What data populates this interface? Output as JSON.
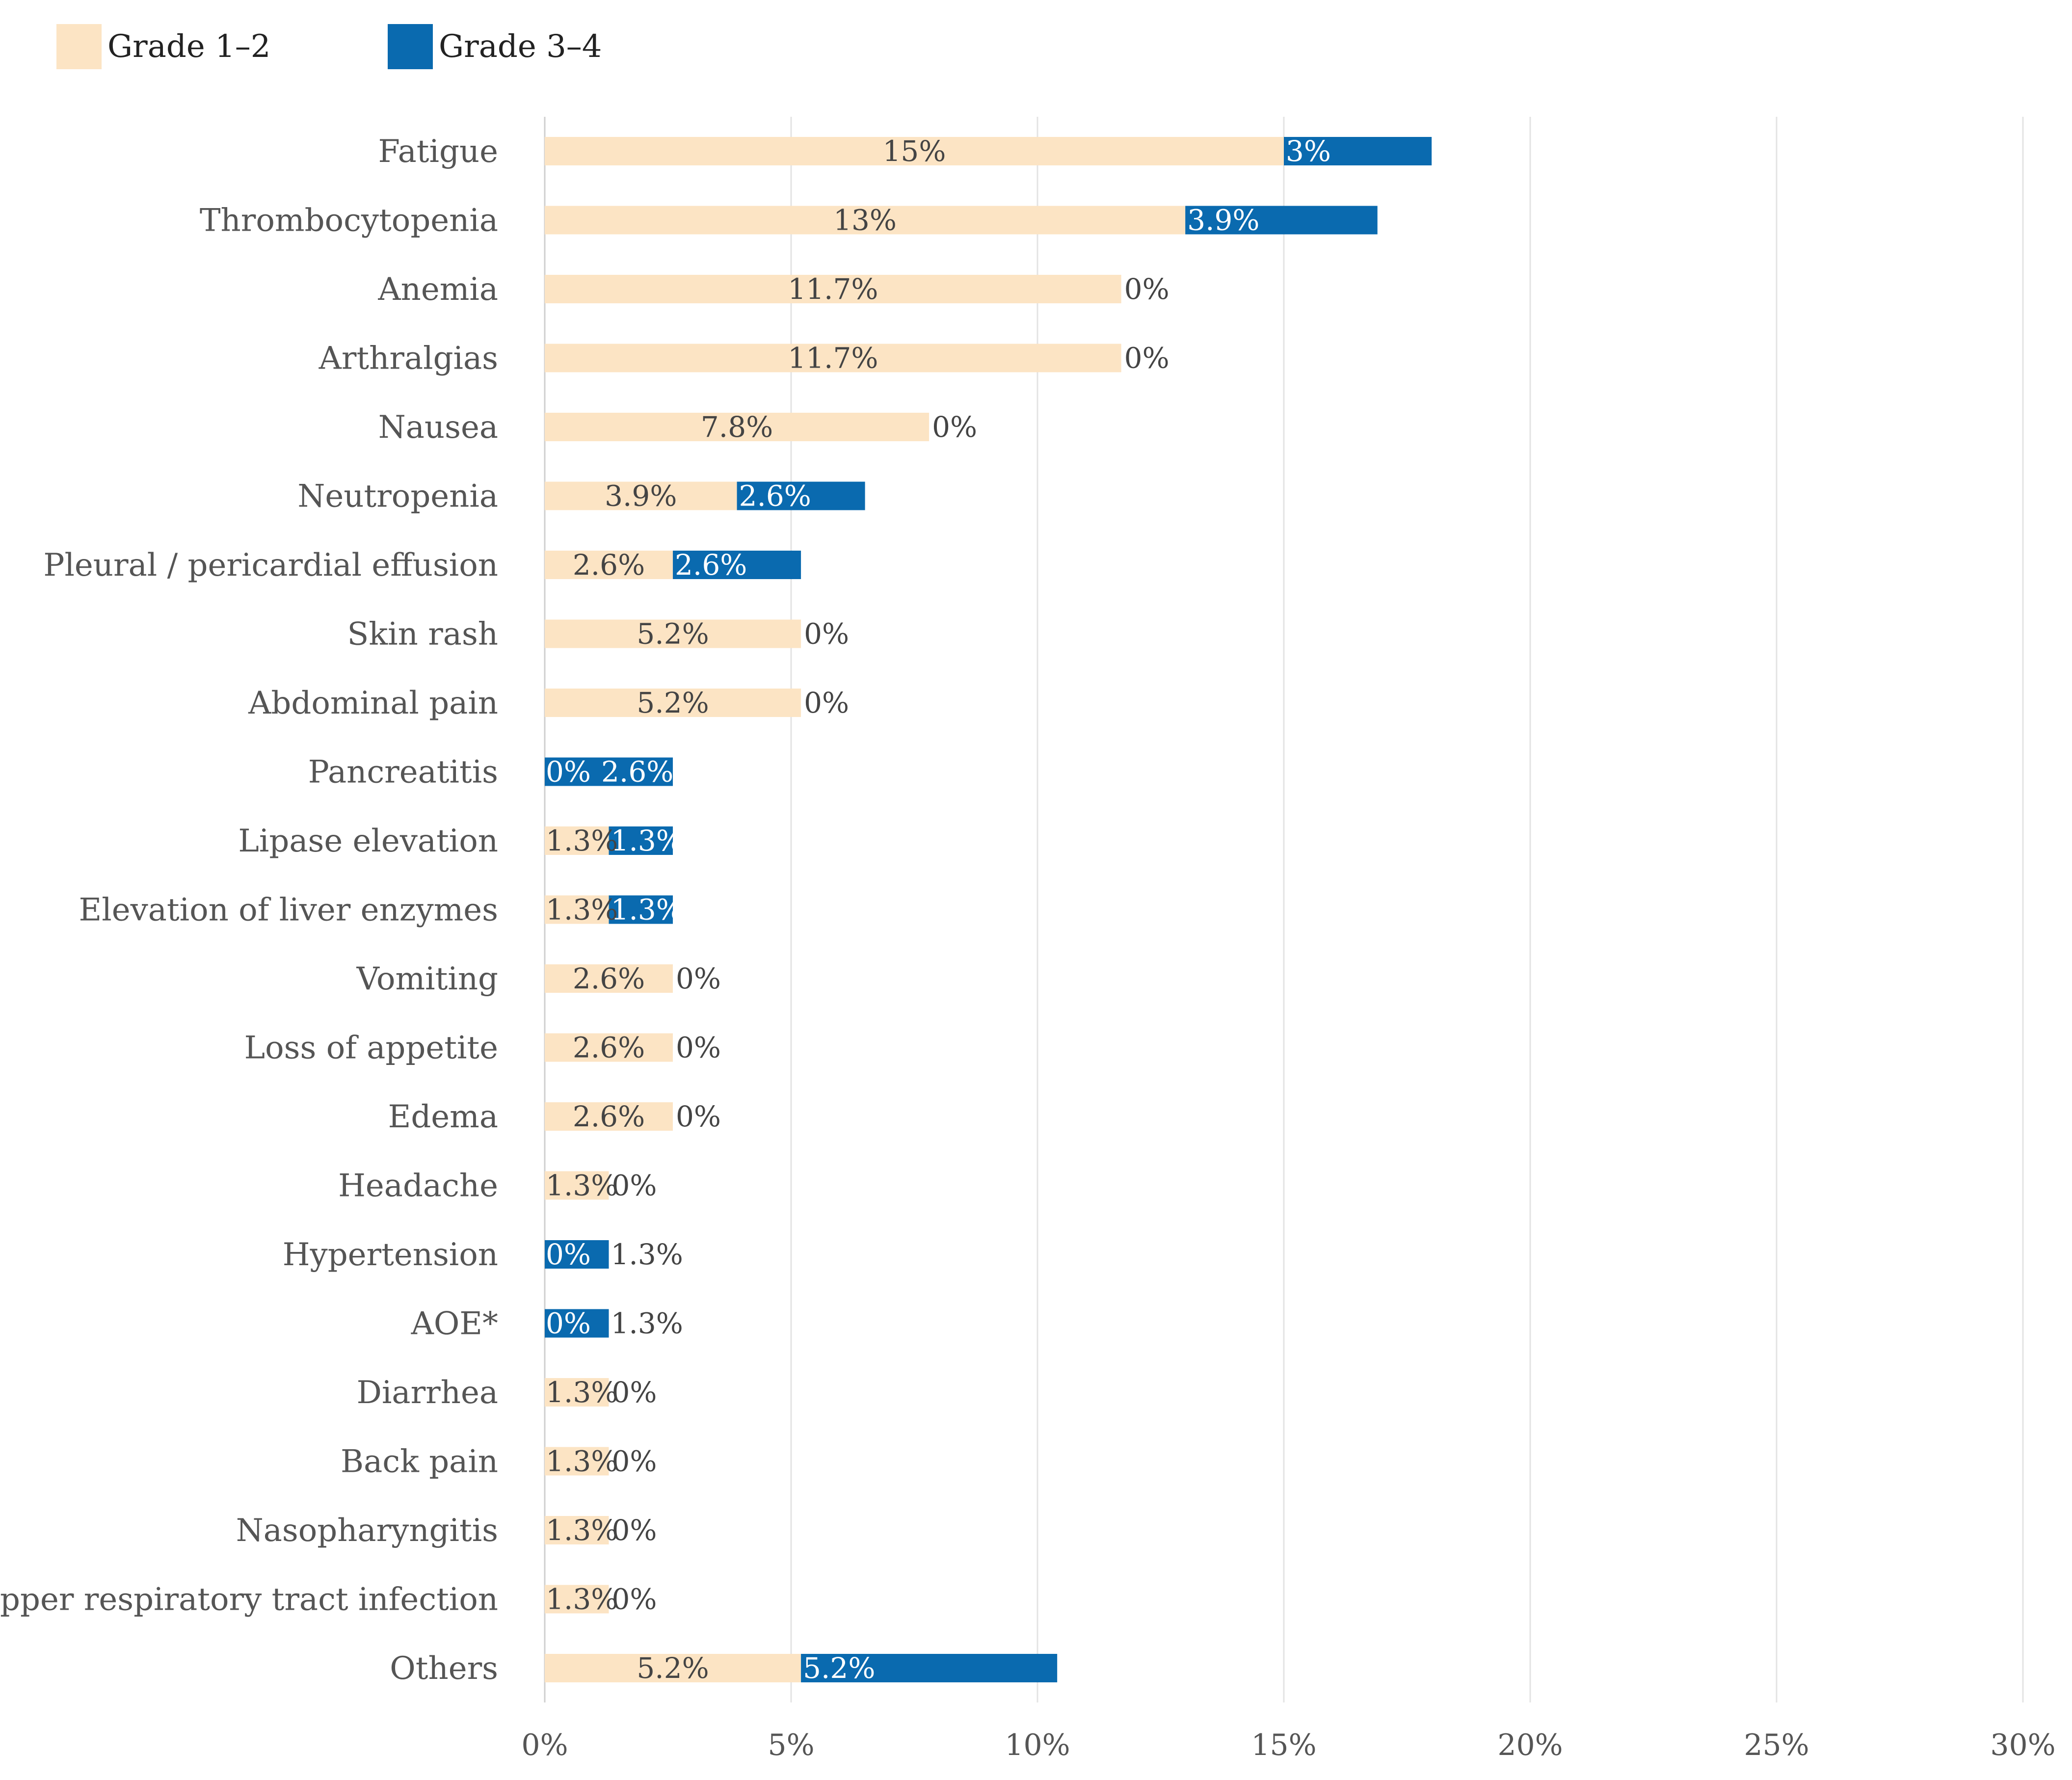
{
  "chart_data": {
    "type": "bar",
    "orientation": "horizontal",
    "stacked": true,
    "title": "",
    "xlabel": "",
    "ylabel": "",
    "xlim": [
      0,
      30
    ],
    "x_ticks": [
      "0%",
      "5%",
      "10%",
      "15%",
      "20%",
      "25%",
      "30%"
    ],
    "grid": true,
    "legend_position": "top-left",
    "categories": [
      "Fatigue",
      "Thrombocytopenia",
      "Anemia",
      "Arthralgias",
      "Nausea",
      "Neutropenia",
      "Pleural / pericardial effusion",
      "Skin rash",
      "Abdominal pain",
      "Pancreatitis",
      "Lipase elevation",
      "Elevation of liver enzymes",
      "Vomiting",
      "Loss of appetite",
      "Edema",
      "Headache",
      "Hypertension",
      "AOE*",
      "Diarrhea",
      "Back pain",
      "Nasopharyngitis",
      "Upper respiratory tract infection",
      "Others"
    ],
    "series": [
      {
        "name": "Grade 1–2",
        "color": "#FCE4C4",
        "values": [
          15,
          13,
          11.7,
          11.7,
          7.8,
          3.9,
          2.6,
          5.2,
          5.2,
          0,
          1.3,
          1.3,
          2.6,
          2.6,
          2.6,
          1.3,
          0,
          0,
          1.3,
          1.3,
          1.3,
          1.3,
          5.2
        ],
        "labels": [
          "15%",
          "13%",
          "11.7%",
          "11.7%",
          "7.8%",
          "3.9%",
          "2.6%",
          "5.2%",
          "5.2%",
          "0%",
          "1.3%",
          "1.3%",
          "2.6%",
          "2.6%",
          "2.6%",
          "1.3%",
          "0%",
          "0%",
          "1.3%",
          "1.3%",
          "1.3%",
          "1.3%",
          "5.2%"
        ]
      },
      {
        "name": "Grade 3–4",
        "color": "#0A6AAF",
        "values": [
          3,
          3.9,
          0,
          0,
          0,
          2.6,
          2.6,
          0,
          0,
          2.6,
          1.3,
          1.3,
          0,
          0,
          0,
          0,
          1.3,
          1.3,
          0,
          0,
          0,
          0,
          5.2
        ],
        "labels": [
          "3%",
          "3.9%",
          "0%",
          "0%",
          "0%",
          "2.6%",
          "2.6%",
          "0%",
          "0%",
          "2.6%",
          "1.3%",
          "1.3%",
          "0%",
          "0%",
          "0%",
          "0%",
          "1.3%",
          "1.3%",
          "0%",
          "0%",
          "0%",
          "0%",
          "5.2%"
        ]
      }
    ]
  }
}
